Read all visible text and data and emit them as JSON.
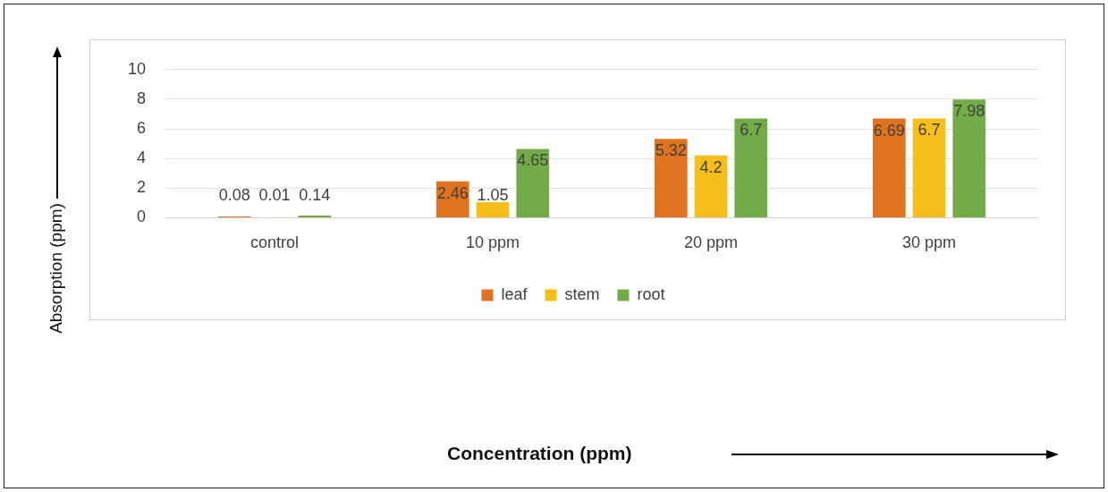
{
  "chart_data": {
    "type": "bar",
    "annotations": [
      "Concentration (ppm)"
    ],
    "ylabel": "Absorption (ppm)",
    "categories": [
      "control",
      "10 ppm",
      "20 ppm",
      "30 ppm"
    ],
    "series": [
      {
        "name": "leaf",
        "color": "#e0731f",
        "values": [
          0.08,
          2.46,
          5.32,
          6.69
        ]
      },
      {
        "name": "stem",
        "color": "#f5be1a",
        "values": [
          0.01,
          1.05,
          4.2,
          6.7
        ]
      },
      {
        "name": "root",
        "color": "#72ab48",
        "values": [
          0.14,
          4.65,
          6.7,
          7.98
        ]
      }
    ],
    "ylim": [
      0,
      10
    ],
    "yticks": [
      0,
      2,
      4,
      6,
      8,
      10
    ],
    "grid": "y",
    "legend": "bottom",
    "data_labels": true
  }
}
